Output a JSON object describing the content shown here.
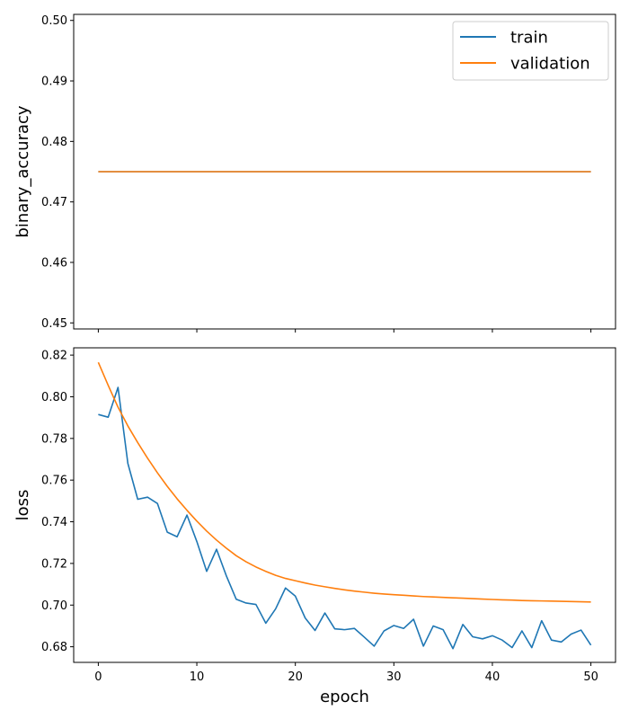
{
  "colors": {
    "train": "#1f77b4",
    "validation": "#ff7f0e"
  },
  "chart_data": [
    {
      "type": "line",
      "ylabel": "binary_accuracy",
      "xlabel": "",
      "xlim": [
        -2.5,
        52.5
      ],
      "ylim": [
        0.449,
        0.501
      ],
      "xticks": [
        0,
        10,
        20,
        30,
        40,
        50
      ],
      "xtick_labels_visible": false,
      "yticks": [
        0.45,
        0.46,
        0.47,
        0.48,
        0.49,
        0.5
      ],
      "ytick_labels": [
        "0.45",
        "0.46",
        "0.47",
        "0.48",
        "0.49",
        "0.50"
      ],
      "legend": {
        "placement": "top-right",
        "entries": [
          "train",
          "validation"
        ]
      },
      "grid": false,
      "series": [
        {
          "name": "train",
          "color": "#1f77b4",
          "x_start": 0,
          "x_end": 50,
          "values": [
            0.475,
            0.475,
            0.475,
            0.475,
            0.475,
            0.475,
            0.475,
            0.475,
            0.475,
            0.475,
            0.475,
            0.475,
            0.475,
            0.475,
            0.475,
            0.475,
            0.475,
            0.475,
            0.475,
            0.475,
            0.475,
            0.475,
            0.475,
            0.475,
            0.475,
            0.475,
            0.475,
            0.475,
            0.475,
            0.475,
            0.475,
            0.475,
            0.475,
            0.475,
            0.475,
            0.475,
            0.475,
            0.475,
            0.475,
            0.475,
            0.475,
            0.475,
            0.475,
            0.475,
            0.475,
            0.475,
            0.475,
            0.475,
            0.475,
            0.475,
            0.475
          ]
        },
        {
          "name": "validation",
          "color": "#ff7f0e",
          "x_start": 0,
          "x_end": 50,
          "values": [
            0.475,
            0.475,
            0.475,
            0.475,
            0.475,
            0.475,
            0.475,
            0.475,
            0.475,
            0.475,
            0.475,
            0.475,
            0.475,
            0.475,
            0.475,
            0.475,
            0.475,
            0.475,
            0.475,
            0.475,
            0.475,
            0.475,
            0.475,
            0.475,
            0.475,
            0.475,
            0.475,
            0.475,
            0.475,
            0.475,
            0.475,
            0.475,
            0.475,
            0.475,
            0.475,
            0.475,
            0.475,
            0.475,
            0.475,
            0.475,
            0.475,
            0.475,
            0.475,
            0.475,
            0.475,
            0.475,
            0.475,
            0.475,
            0.475,
            0.475,
            0.475
          ]
        }
      ]
    },
    {
      "type": "line",
      "ylabel": "loss",
      "xlabel": "epoch",
      "xlim": [
        -2.5,
        52.5
      ],
      "ylim": [
        0.6725,
        0.8235
      ],
      "xticks": [
        0,
        10,
        20,
        30,
        40,
        50
      ],
      "xtick_labels": [
        "0",
        "10",
        "20",
        "30",
        "40",
        "50"
      ],
      "xtick_labels_visible": true,
      "yticks": [
        0.68,
        0.7,
        0.72,
        0.74,
        0.76,
        0.78,
        0.8,
        0.82
      ],
      "ytick_labels": [
        "0.68",
        "0.70",
        "0.72",
        "0.74",
        "0.76",
        "0.78",
        "0.80",
        "0.82"
      ],
      "grid": false,
      "series": [
        {
          "name": "train",
          "color": "#1f77b4",
          "x_start": 0,
          "x_end": 50,
          "values": [
            0.7915,
            0.7902,
            0.8045,
            0.768,
            0.7508,
            0.7518,
            0.7488,
            0.735,
            0.7328,
            0.7432,
            0.7305,
            0.7162,
            0.7268,
            0.714,
            0.7028,
            0.701,
            0.7003,
            0.6913,
            0.6982,
            0.7082,
            0.7043,
            0.6938,
            0.6878,
            0.6962,
            0.6886,
            0.6882,
            0.6888,
            0.6846,
            0.6803,
            0.6876,
            0.6902,
            0.6888,
            0.6932,
            0.6803,
            0.69,
            0.6882,
            0.6791,
            0.6907,
            0.6848,
            0.6838,
            0.6853,
            0.6832,
            0.6796,
            0.6876,
            0.6796,
            0.6925,
            0.6832,
            0.6823,
            0.6861,
            0.688,
            0.6808
          ]
        },
        {
          "name": "validation",
          "color": "#ff7f0e",
          "x_start": 0,
          "x_end": 50,
          "values": [
            0.8165,
            0.8055,
            0.795,
            0.786,
            0.778,
            0.7705,
            0.7635,
            0.757,
            0.751,
            0.7455,
            0.7403,
            0.7355,
            0.7312,
            0.7273,
            0.7237,
            0.7208,
            0.7183,
            0.7162,
            0.7143,
            0.7128,
            0.7117,
            0.7106,
            0.7096,
            0.7088,
            0.708,
            0.7073,
            0.7067,
            0.7062,
            0.7057,
            0.7053,
            0.705,
            0.7047,
            0.7044,
            0.7041,
            0.7039,
            0.7037,
            0.7035,
            0.7033,
            0.7031,
            0.7029,
            0.7027,
            0.7025,
            0.7024,
            0.7022,
            0.7021,
            0.702,
            0.7019,
            0.7018,
            0.7017,
            0.7016,
            0.7015
          ]
        }
      ]
    }
  ]
}
